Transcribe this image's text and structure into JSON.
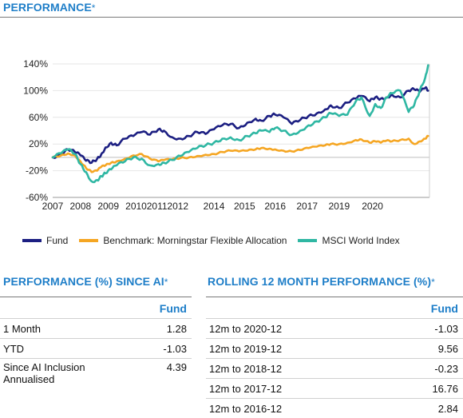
{
  "header": {
    "performance_title": "PERFORMANCE",
    "performance_star": "*"
  },
  "chart_data": {
    "type": "line",
    "title": "",
    "xlabel": "",
    "ylabel": "",
    "ylim": [
      -60,
      140
    ],
    "xlim": [
      2007.0,
      2020.55
    ],
    "y_ticks": [
      "140%",
      "100%",
      "60%",
      "20%",
      "-20%",
      "-60%"
    ],
    "x_ticks": [
      "2007",
      "2008",
      "2009",
      "2010",
      "2011",
      "2012",
      "2014",
      "2015",
      "2016",
      "2017",
      "2019",
      "2020"
    ],
    "x_tick_positions": [
      2007.0,
      2008.0,
      2009.0,
      2010.0,
      2010.75,
      2011.5,
      2012.8,
      2013.9,
      2015.0,
      2016.15,
      2017.3,
      2018.5
    ],
    "legend_position": "bottom",
    "colors": {
      "fund": "#1c1f82",
      "benchmark": "#f5a623",
      "msci": "#2fb7a3"
    },
    "series": [
      {
        "name": "Fund",
        "color": "#1c1f82",
        "x": [
          2007.0,
          2007.3,
          2007.55,
          2007.8,
          2008.0,
          2008.2,
          2008.4,
          2008.6,
          2008.75,
          2008.9,
          2009.1,
          2009.3,
          2009.6,
          2009.9,
          2010.2,
          2010.5,
          2010.8,
          2011.0,
          2011.3,
          2011.6,
          2011.9,
          2012.2,
          2012.5,
          2012.8,
          2013.1,
          2013.4,
          2013.7,
          2014.0,
          2014.3,
          2014.5,
          2014.8,
          2015.0,
          2015.3,
          2015.6,
          2015.9,
          2016.2,
          2016.5,
          2016.8,
          2017.0,
          2017.3,
          2017.6,
          2017.9,
          2018.1,
          2018.4,
          2018.6,
          2018.8,
          2019.0,
          2019.2,
          2019.5,
          2019.8,
          2020.0,
          2020.2,
          2020.4,
          2020.5
        ],
        "values": [
          0,
          5,
          12,
          8,
          3,
          -5,
          -8,
          -2,
          5,
          15,
          22,
          18,
          28,
          32,
          38,
          34,
          42,
          40,
          30,
          28,
          32,
          38,
          35,
          42,
          48,
          50,
          44,
          52,
          58,
          55,
          62,
          64,
          60,
          50,
          56,
          62,
          66,
          72,
          78,
          74,
          82,
          88,
          92,
          84,
          90,
          88,
          90,
          94,
          90,
          100,
          102,
          98,
          104,
          100
        ]
      },
      {
        "name": "Benchmark: Morningstar Flexible Allocation",
        "color": "#f5a623",
        "x": [
          2007.0,
          2007.3,
          2007.55,
          2007.8,
          2008.0,
          2008.2,
          2008.4,
          2008.6,
          2008.75,
          2008.9,
          2009.1,
          2009.3,
          2009.6,
          2009.9,
          2010.2,
          2010.5,
          2010.8,
          2011.0,
          2011.3,
          2011.6,
          2011.9,
          2012.2,
          2012.5,
          2012.8,
          2013.1,
          2013.4,
          2013.7,
          2014.0,
          2014.3,
          2014.5,
          2014.8,
          2015.0,
          2015.3,
          2015.6,
          2015.9,
          2016.2,
          2016.5,
          2016.8,
          2017.0,
          2017.3,
          2017.6,
          2017.9,
          2018.1,
          2018.4,
          2018.6,
          2018.8,
          2019.0,
          2019.2,
          2019.5,
          2019.8,
          2020.0,
          2020.2,
          2020.4,
          2020.5
        ],
        "values": [
          0,
          3,
          6,
          3,
          -6,
          -16,
          -22,
          -20,
          -14,
          -12,
          -8,
          -6,
          -2,
          3,
          5,
          -2,
          -6,
          -4,
          -3,
          -1,
          0,
          2,
          4,
          5,
          8,
          10,
          9,
          10,
          12,
          14,
          13,
          12,
          10,
          9,
          11,
          14,
          16,
          18,
          20,
          20,
          22,
          26,
          27,
          22,
          24,
          22,
          25,
          24,
          26,
          28,
          20,
          24,
          28,
          32
        ]
      },
      {
        "name": "MSCI World Index",
        "color": "#2fb7a3",
        "x": [
          2007.0,
          2007.3,
          2007.55,
          2007.8,
          2008.0,
          2008.2,
          2008.4,
          2008.6,
          2008.75,
          2008.9,
          2009.1,
          2009.3,
          2009.6,
          2009.9,
          2010.2,
          2010.5,
          2010.8,
          2011.0,
          2011.3,
          2011.6,
          2011.9,
          2012.2,
          2012.5,
          2012.8,
          2013.1,
          2013.4,
          2013.7,
          2014.0,
          2014.3,
          2014.5,
          2014.8,
          2015.0,
          2015.3,
          2015.6,
          2015.9,
          2016.2,
          2016.5,
          2016.8,
          2017.0,
          2017.3,
          2017.6,
          2017.9,
          2018.1,
          2018.4,
          2018.6,
          2018.8,
          2019.0,
          2019.2,
          2019.5,
          2019.8,
          2020.0,
          2020.2,
          2020.4,
          2020.5
        ],
        "values": [
          0,
          6,
          12,
          5,
          -10,
          -22,
          -36,
          -34,
          -28,
          -24,
          -18,
          -12,
          -6,
          0,
          -2,
          -12,
          -10,
          -8,
          -4,
          2,
          8,
          14,
          18,
          22,
          28,
          30,
          26,
          32,
          36,
          40,
          38,
          44,
          40,
          34,
          40,
          48,
          54,
          60,
          66,
          62,
          64,
          84,
          90,
          62,
          80,
          74,
          90,
          96,
          100,
          68,
          78,
          100,
          120,
          138
        ]
      }
    ]
  },
  "legend": {
    "fund": "Fund",
    "benchmark": "Benchmark: Morningstar Flexible Allocation",
    "msci": "MSCI World Index"
  },
  "since_ai": {
    "title": "PERFORMANCE (%) SINCE AI",
    "star": "*",
    "column_header": "Fund",
    "rows": [
      {
        "label": "1 Month",
        "value": "1.28"
      },
      {
        "label": "YTD",
        "value": "-1.03"
      },
      {
        "label": "Since AI Inclusion",
        "label2": "Annualised",
        "value": "4.39"
      }
    ]
  },
  "rolling": {
    "title": "ROLLING 12 MONTH PERFORMANCE (%)",
    "star": "*",
    "column_header": "Fund",
    "rows": [
      {
        "label": "12m to 2020-12",
        "value": "-1.03"
      },
      {
        "label": "12m to 2019-12",
        "value": "9.56"
      },
      {
        "label": "12m to 2018-12",
        "value": "-0.23"
      },
      {
        "label": "12m to 2017-12",
        "value": "16.76"
      },
      {
        "label": "12m to 2016-12",
        "value": "2.84"
      }
    ]
  }
}
